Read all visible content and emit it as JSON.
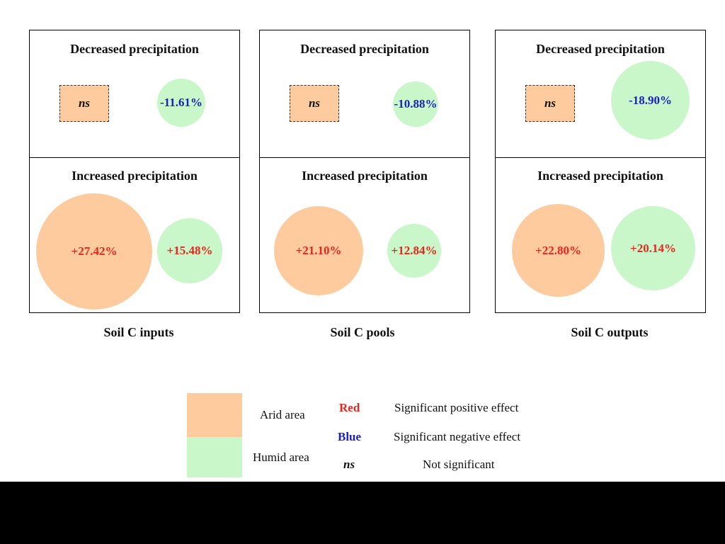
{
  "colors": {
    "arid": "#fdcb9d",
    "humid": "#c9f7c9",
    "positive": "#e8261e",
    "negative": "#1a1fc7"
  },
  "panels": [
    {
      "caption": "Soil C inputs",
      "decreased": {
        "title": "Decreased precipitation",
        "arid": "ns",
        "humid": "-11.61%"
      },
      "increased": {
        "title": "Increased precipitation",
        "arid": "+27.42%",
        "humid": "+15.48%"
      }
    },
    {
      "caption": "Soil C pools",
      "decreased": {
        "title": "Decreased precipitation",
        "arid": "ns",
        "humid": "-10.88%"
      },
      "increased": {
        "title": "Increased precipitation",
        "arid": "+21.10%",
        "humid": "+12.84%"
      }
    },
    {
      "caption": "Soil C outputs",
      "decreased": {
        "title": "Decreased precipitation",
        "arid": "ns",
        "humid": "-18.90%"
      },
      "increased": {
        "title": "Increased precipitation",
        "arid": "+22.80%",
        "humid": "+20.14%"
      }
    }
  ],
  "legend": {
    "arid_label": "Arid area",
    "humid_label": "Humid area",
    "red_key": "Red",
    "red_desc": "Significant positive effect",
    "blue_key": "Blue",
    "blue_desc": "Significant negative effect",
    "ns_key": "ns",
    "ns_desc": "Not significant"
  }
}
